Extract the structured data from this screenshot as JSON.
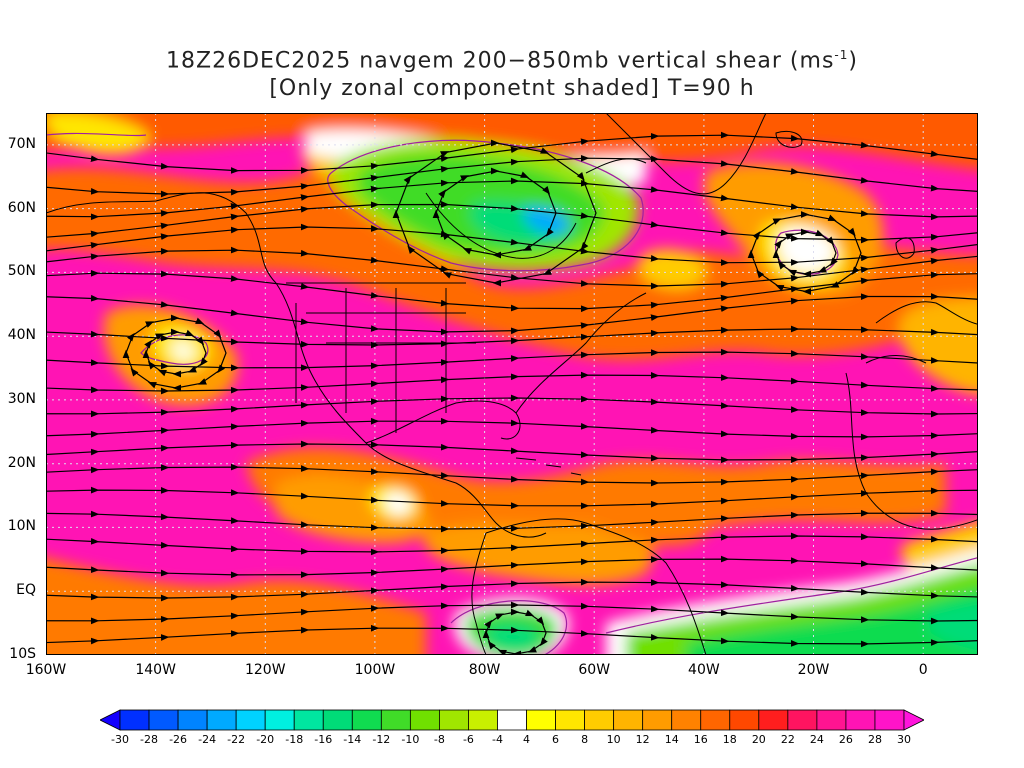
{
  "title": {
    "line1_prefix": "18Z26DEC2025 navgem 200−850mb vertical shear (ms",
    "line1_sup": "-1",
    "line1_suffix": ")",
    "line2": "[Only zonal componetnt shaded] T=90 h"
  },
  "map": {
    "lon_range": [
      -160,
      10
    ],
    "lat_range": [
      -10,
      75
    ],
    "grid_color": "#d8d8ff",
    "coast_color": "#000000",
    "contour_color": "#a020a0",
    "streamline_color": "#000000"
  },
  "axes": {
    "y_labels": [
      {
        "lat": 70,
        "text": "70N"
      },
      {
        "lat": 60,
        "text": "60N"
      },
      {
        "lat": 50,
        "text": "50N"
      },
      {
        "lat": 40,
        "text": "40N"
      },
      {
        "lat": 30,
        "text": "30N"
      },
      {
        "lat": 20,
        "text": "20N"
      },
      {
        "lat": 10,
        "text": "10N"
      },
      {
        "lat": 0,
        "text": "EQ"
      },
      {
        "lat": -10,
        "text": "10S"
      }
    ],
    "x_labels": [
      {
        "lon": -160,
        "text": "160W"
      },
      {
        "lon": -140,
        "text": "140W"
      },
      {
        "lon": -120,
        "text": "120W"
      },
      {
        "lon": -100,
        "text": "100W"
      },
      {
        "lon": -80,
        "text": "80W"
      },
      {
        "lon": -60,
        "text": "60W"
      },
      {
        "lon": -40,
        "text": "40W"
      },
      {
        "lon": -20,
        "text": "20W"
      },
      {
        "lon": 0,
        "text": "0"
      }
    ]
  },
  "colorbar": {
    "labels": [
      "-30",
      "-28",
      "-26",
      "-24",
      "-22",
      "-20",
      "-18",
      "-16",
      "-14",
      "-12",
      "-10",
      "-8",
      "-6",
      "-4",
      "4",
      "6",
      "8",
      "10",
      "12",
      "14",
      "16",
      "18",
      "20",
      "22",
      "24",
      "26",
      "28",
      "30"
    ],
    "colors": [
      "#1400ff",
      "#0030ff",
      "#005aff",
      "#0084ff",
      "#00aaff",
      "#00d2ff",
      "#00f0e0",
      "#00e6a0",
      "#00dc78",
      "#10dc50",
      "#40dc28",
      "#70e000",
      "#a0e600",
      "#c8f000",
      "#ffffff",
      "#ffff00",
      "#ffe600",
      "#ffcc00",
      "#ffb400",
      "#ff9c00",
      "#ff8200",
      "#ff6600",
      "#ff4800",
      "#ff1e1e",
      "#ff1460",
      "#ff1491",
      "#ff14b4",
      "#ff14c8",
      "#ff14dc"
    ]
  }
}
